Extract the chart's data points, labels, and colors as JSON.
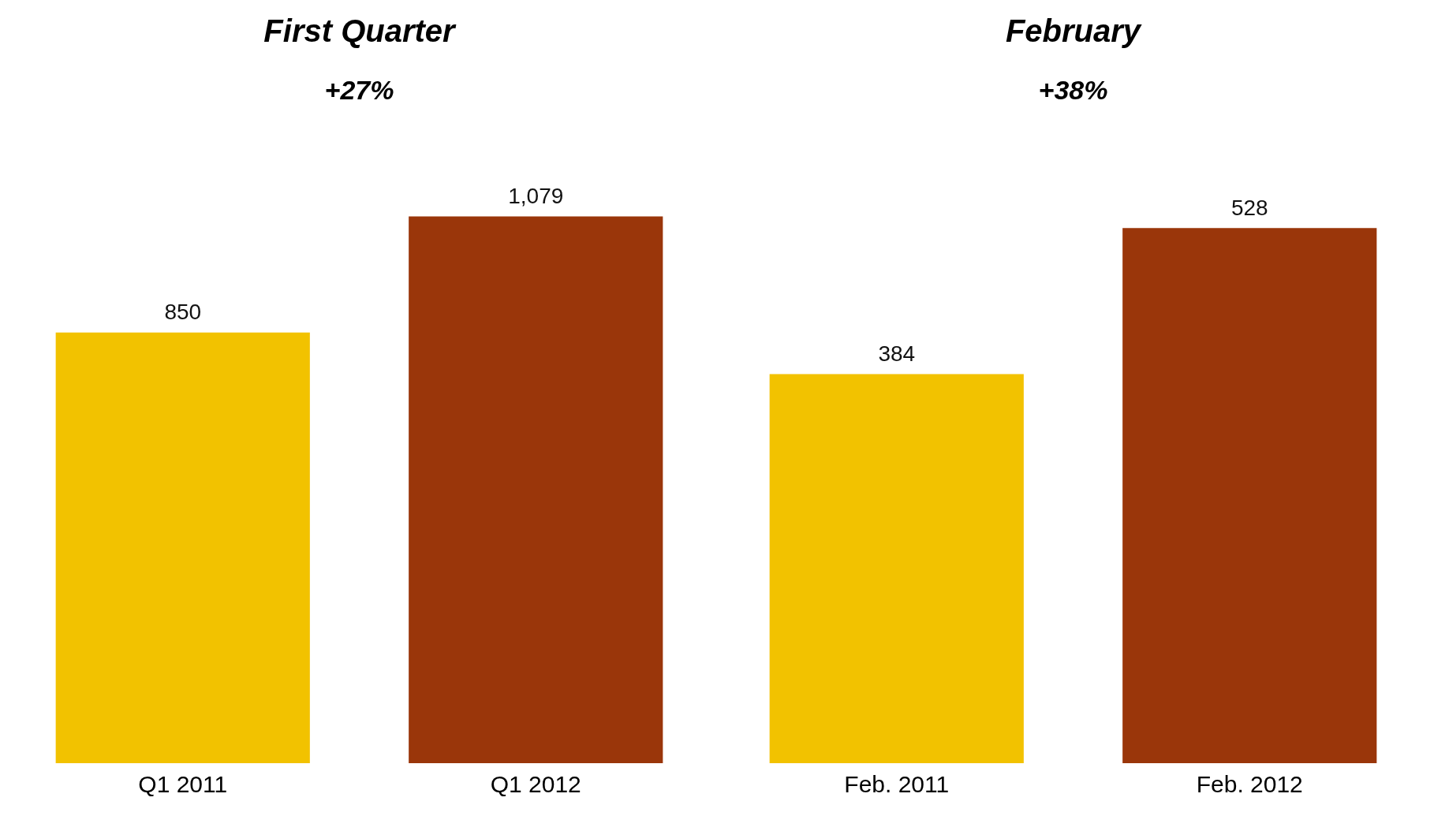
{
  "chart_data": [
    {
      "type": "bar",
      "title": "First Quarter",
      "annotations": [
        "+27%"
      ],
      "categories": [
        "Q1 2011",
        "Q1 2012"
      ],
      "values": [
        850,
        1079
      ],
      "value_labels": [
        "850",
        "1,079"
      ],
      "colors": [
        "#f2c200",
        "#9a360a"
      ],
      "grid": false,
      "legend": false
    },
    {
      "type": "bar",
      "title": "February",
      "annotations": [
        "+38%"
      ],
      "categories": [
        "Feb. 2011",
        "Feb. 2012"
      ],
      "values": [
        384,
        528
      ],
      "value_labels": [
        "384",
        "528"
      ],
      "colors": [
        "#f2c200",
        "#9a360a"
      ],
      "grid": false,
      "legend": false
    }
  ]
}
